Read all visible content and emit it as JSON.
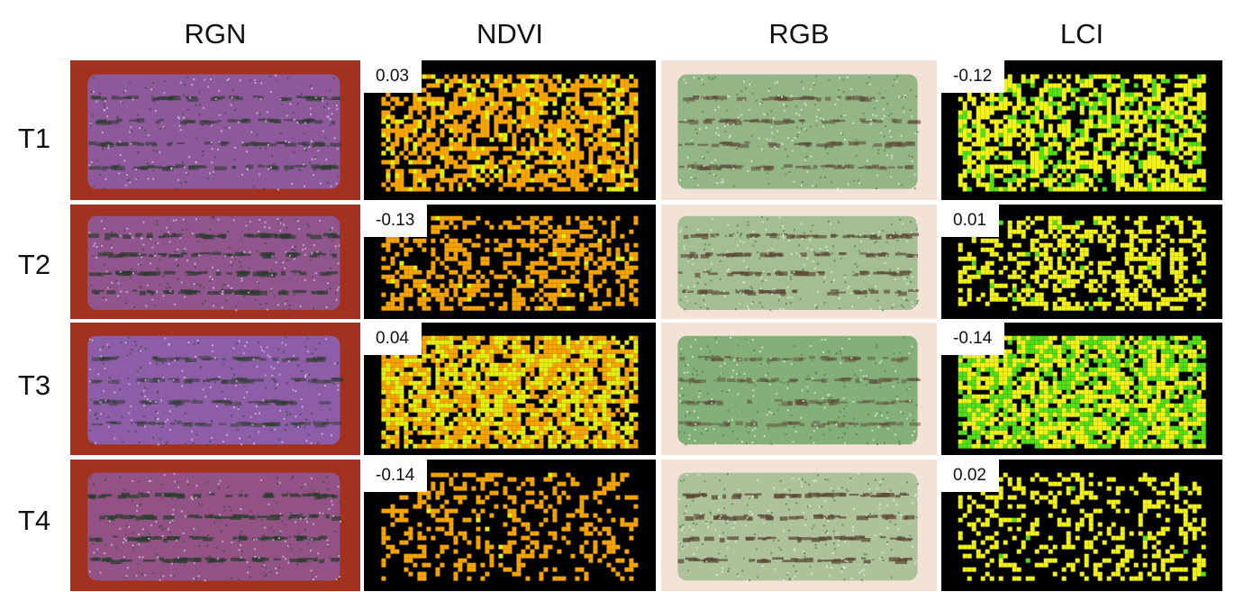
{
  "columns": [
    "RGN",
    "NDVI",
    "RGB",
    "LCI"
  ],
  "rows": [
    {
      "label": "T1",
      "ndvi": "0.03",
      "lci": "-0.12"
    },
    {
      "label": "T2",
      "ndvi": "-0.13",
      "lci": "0.01"
    },
    {
      "label": "T3",
      "ndvi": "0.04",
      "lci": "-0.14"
    },
    {
      "label": "T4",
      "ndvi": "-0.14",
      "lci": "0.02"
    }
  ],
  "colors": {
    "rgn_soil": "#a2321f",
    "rgn_canopy": "#8a62b5",
    "ndvi_background": "#000000",
    "ndvi_low": "#f5a400",
    "ndvi_high": "#e3ef12",
    "rgb_soil": "#f3e2d6",
    "rgb_canopy": "#6fa566",
    "lci_background": "#000000",
    "lci_low": "#f2f21a",
    "lci_high": "#52df1a"
  }
}
